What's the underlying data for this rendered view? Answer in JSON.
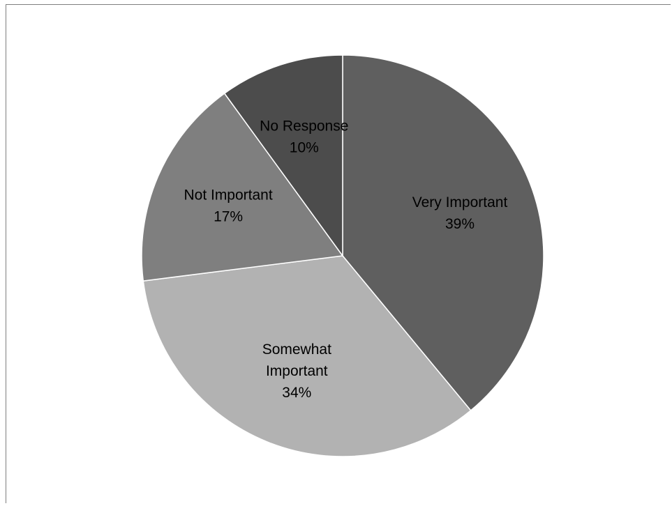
{
  "chart_data": {
    "type": "pie",
    "title": "",
    "start_angle_deg": 0,
    "direction": "clockwise",
    "legend": "none",
    "slices": [
      {
        "label": "Very Important",
        "value": 39,
        "percent_label": "39%",
        "color": "#5f5f5f",
        "label_lines": [
          "Very Important"
        ]
      },
      {
        "label": "Somewhat Important",
        "value": 34,
        "percent_label": "34%",
        "color": "#b2b2b2",
        "label_lines": [
          "Somewhat",
          "Important"
        ]
      },
      {
        "label": "Not Important",
        "value": 17,
        "percent_label": "17%",
        "color": "#7f7f7f",
        "label_lines": [
          "Not Important"
        ]
      },
      {
        "label": "No Response",
        "value": 10,
        "percent_label": "10%",
        "color": "#4c4c4c",
        "label_lines": [
          "No Response"
        ]
      }
    ]
  }
}
